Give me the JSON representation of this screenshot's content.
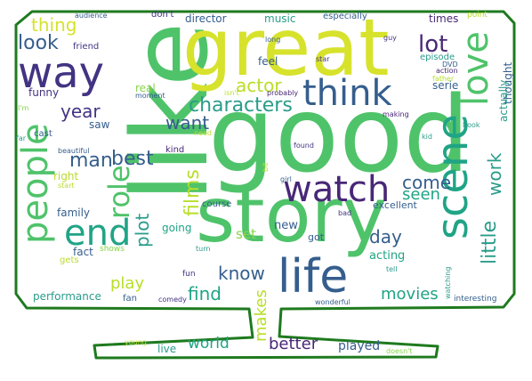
{
  "colors": {
    "outline": "#1e7a1e",
    "background": "#ffffff",
    "palette": [
      "#4fc36a",
      "#d7e22c",
      "#433383",
      "#355e8d",
      "#2a9c8a",
      "#86d44a",
      "#20a486",
      "#482777",
      "#b8de29",
      "#3b528b"
    ]
  },
  "words": [
    {
      "text": "like",
      "color": "#4fc36a"
    },
    {
      "text": "good",
      "color": "#4fc36a"
    },
    {
      "text": "great",
      "color": "#d7e22c"
    },
    {
      "text": "story",
      "color": "#4fc36a"
    },
    {
      "text": "way",
      "color": "#433383"
    },
    {
      "text": "think",
      "color": "#355e8d"
    },
    {
      "text": "people",
      "color": "#4fc36a"
    },
    {
      "text": "scene",
      "color": "#20a486"
    },
    {
      "text": "love",
      "color": "#4fc36a"
    },
    {
      "text": "watch",
      "color": "#482777"
    },
    {
      "text": "life",
      "color": "#355e8d"
    },
    {
      "text": "end",
      "color": "#20a486"
    },
    {
      "text": "characters",
      "color": "#2a9c8a"
    },
    {
      "text": "actor",
      "color": "#b8de29"
    },
    {
      "text": "lot",
      "color": "#482777"
    },
    {
      "text": "look",
      "color": "#355e8d"
    },
    {
      "text": "thing",
      "color": "#d7e22c"
    },
    {
      "text": "year",
      "color": "#433383"
    },
    {
      "text": "man",
      "color": "#355e8d"
    },
    {
      "text": "best",
      "color": "#355e8d"
    },
    {
      "text": "role",
      "color": "#4fc36a"
    },
    {
      "text": "want",
      "color": "#355e8d"
    },
    {
      "text": "films",
      "color": "#b8de29"
    },
    {
      "text": "plot",
      "color": "#2a9c8a"
    },
    {
      "text": "come",
      "color": "#355e8d"
    },
    {
      "text": "seen",
      "color": "#20a486"
    },
    {
      "text": "work",
      "color": "#2a9c8a"
    },
    {
      "text": "little",
      "color": "#2a9c8a"
    },
    {
      "text": "day",
      "color": "#355e8d"
    },
    {
      "text": "know",
      "color": "#355e8d"
    },
    {
      "text": "find",
      "color": "#20a486"
    },
    {
      "text": "play",
      "color": "#b8de29"
    },
    {
      "text": "movies",
      "color": "#20a486"
    },
    {
      "text": "makes",
      "color": "#b8de29"
    },
    {
      "text": "better",
      "color": "#482777"
    },
    {
      "text": "world",
      "color": "#20a486"
    },
    {
      "text": "played",
      "color": "#355e8d"
    },
    {
      "text": "acting",
      "color": "#20a486"
    },
    {
      "text": "going",
      "color": "#20a486"
    },
    {
      "text": "set",
      "color": "#86d44a"
    },
    {
      "text": "new",
      "color": "#355e8d"
    },
    {
      "text": "got",
      "color": "#355e8d"
    },
    {
      "text": "funny",
      "color": "#433383"
    },
    {
      "text": "saw",
      "color": "#355e8d"
    },
    {
      "text": "real",
      "color": "#86d44a"
    },
    {
      "text": "kind",
      "color": "#482777"
    },
    {
      "text": "feel",
      "color": "#355e8d"
    },
    {
      "text": "serie",
      "color": "#355e8d"
    },
    {
      "text": "thought",
      "color": "#355e8d"
    },
    {
      "text": "actually",
      "color": "#2a9c8a"
    },
    {
      "text": "episode",
      "color": "#2a9c8a"
    },
    {
      "text": "times",
      "color": "#482777"
    },
    {
      "text": "music",
      "color": "#2a9c8a"
    },
    {
      "text": "director",
      "color": "#355e8d"
    },
    {
      "text": "don't",
      "color": "#433383"
    },
    {
      "text": "audience",
      "color": "#355e8d"
    },
    {
      "text": "especially",
      "color": "#355e8d"
    },
    {
      "text": "point",
      "color": "#b8de29"
    },
    {
      "text": "friend",
      "color": "#433383"
    },
    {
      "text": "long",
      "color": "#355e8d"
    },
    {
      "text": "star",
      "color": "#433383"
    },
    {
      "text": "guy",
      "color": "#433383"
    },
    {
      "text": "DVD",
      "color": "#355e8d"
    },
    {
      "text": "action",
      "color": "#482777"
    },
    {
      "text": "father",
      "color": "#b8de29"
    },
    {
      "text": "making",
      "color": "#482777"
    },
    {
      "text": "book",
      "color": "#2a9c8a"
    },
    {
      "text": "kid",
      "color": "#2a9c8a"
    },
    {
      "text": "isn't",
      "color": "#b8de29"
    },
    {
      "text": "probably",
      "color": "#482777"
    },
    {
      "text": "moment",
      "color": "#355e8d"
    },
    {
      "text": "need",
      "color": "#b8de29"
    },
    {
      "text": "I'm",
      "color": "#86d44a"
    },
    {
      "text": "far",
      "color": "#2a9c8a"
    },
    {
      "text": "cast",
      "color": "#355e8d"
    },
    {
      "text": "beautiful",
      "color": "#355e8d"
    },
    {
      "text": "right",
      "color": "#b8de29"
    },
    {
      "text": "start",
      "color": "#b8de29"
    },
    {
      "text": "family",
      "color": "#355e8d"
    },
    {
      "text": "fact",
      "color": "#355e8d"
    },
    {
      "text": "shows",
      "color": "#86d44a"
    },
    {
      "text": "gets",
      "color": "#b8de29"
    },
    {
      "text": "performance",
      "color": "#2a9c8a"
    },
    {
      "text": "fan",
      "color": "#355e8d"
    },
    {
      "text": "comedy",
      "color": "#433383"
    },
    {
      "text": "fun",
      "color": "#433383"
    },
    {
      "text": "turn",
      "color": "#2a9c8a"
    },
    {
      "text": "course",
      "color": "#355e8d"
    },
    {
      "text": "bit",
      "color": "#b8de29"
    },
    {
      "text": "girl",
      "color": "#355e8d"
    },
    {
      "text": "found",
      "color": "#433383"
    },
    {
      "text": "bad",
      "color": "#433383"
    },
    {
      "text": "excellent",
      "color": "#355e8d"
    },
    {
      "text": "tell",
      "color": "#2a9c8a"
    },
    {
      "text": "watching",
      "color": "#2a9c8a"
    },
    {
      "text": "wonderful",
      "color": "#355e8d"
    },
    {
      "text": "interesting",
      "color": "#355e8d"
    },
    {
      "text": "live",
      "color": "#2a9c8a"
    },
    {
      "text": "young",
      "color": "#b8de29"
    },
    {
      "text": "doesn't",
      "color": "#86d44a"
    }
  ]
}
